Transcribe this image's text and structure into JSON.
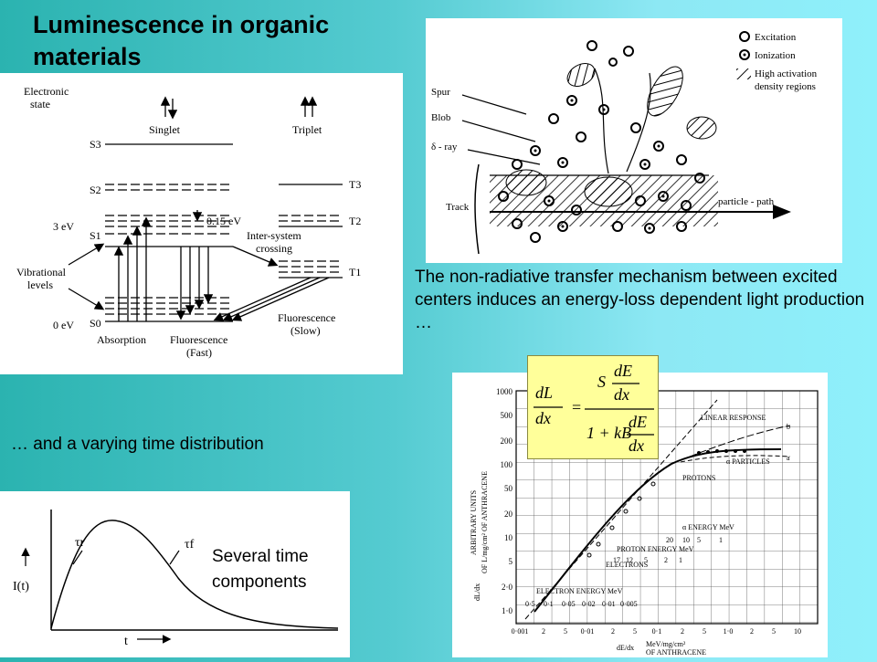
{
  "slide": {
    "title": "Luminescence in organic materials",
    "caption_right": "The non-radiative transfer mechanism between excited centers induces an energy-loss dependent light production …",
    "caption_left": "… and a varying time distribution",
    "caption_time": "Several time components"
  },
  "energy_diagram": {
    "electronic_state": [
      "Electronic",
      "state"
    ],
    "singlet": "Singlet",
    "triplet": "Triplet",
    "s_levels": [
      "S3",
      "S2",
      "S1",
      "S0"
    ],
    "t_levels": [
      "T3",
      "T2",
      "T1"
    ],
    "ev_3": "3 eV",
    "ev_0": "0 eV",
    "ev_015": "0.15 eV",
    "vibrational": [
      "Vibrational",
      "levels"
    ],
    "intersystem": [
      "Inter-system",
      "crossing"
    ],
    "absorption": "Absorption",
    "fluor_fast": [
      "Fluorescence",
      "(Fast)"
    ],
    "fluor_slow": [
      "Fluorescence",
      "(Slow)"
    ]
  },
  "track_diagram": {
    "legend_excitation": "Excitation",
    "legend_ionization": "Ionization",
    "legend_high": [
      "High activation",
      "density regions"
    ],
    "spur": "Spur",
    "blob": "Blob",
    "delta_ray": "δ - ray",
    "track": "Track",
    "particle_path": "particle - path"
  },
  "time_plot": {
    "ylabel": "I(t)",
    "xlabel": "t",
    "tau_r": "τr",
    "tau_f": "τf"
  },
  "response_plot": {
    "formula": {
      "lhs_num": "dL",
      "lhs_den": "dx",
      "S": "S",
      "dE": "dE",
      "dx": "dx",
      "den_prefix": "1 + kB"
    },
    "linear_response": "LINEAR RESPONSE",
    "alpha_particles": "α PARTICLES",
    "protons": "PROTONS",
    "electrons": "ELECTRONS",
    "alpha_energy": "α ENERGY MeV",
    "alpha_ticks": [
      "20",
      "10",
      "5",
      "1"
    ],
    "proton_energy": "PROTON ENERGY MeV",
    "proton_ticks": [
      "17",
      "12",
      "5",
      "2",
      "1"
    ],
    "electron_energy": "ELECTRON ENERGY MeV",
    "electron_ticks": [
      "0·5",
      "0·1",
      "0·05",
      "0·02",
      "0·01",
      "0·005"
    ],
    "y_ticks": [
      "1000",
      "500",
      "200",
      "100",
      "50",
      "20",
      "10",
      "5",
      "2·0",
      "1·0"
    ],
    "x_ticks": [
      "0·001",
      "2",
      "5",
      "0·01",
      "2",
      "5",
      "0·1",
      "2",
      "5",
      "1·0",
      "2",
      "5",
      "10"
    ],
    "ylabel_left": "dL/dx",
    "ylabel_units": [
      "ARBITRARY UNITS",
      "OF L/mg/cm² OF ANTHRACENE"
    ],
    "xlabel_left": "dE/dx",
    "xlabel_units": [
      "MeV/mg/cm²",
      "OF ANTHRACENE"
    ],
    "curve_labels": [
      "b",
      "a"
    ]
  }
}
